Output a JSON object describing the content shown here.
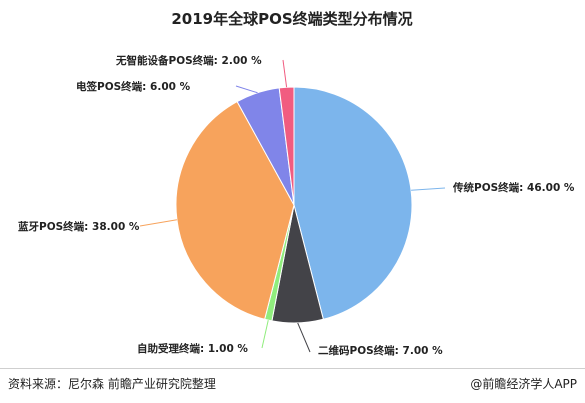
{
  "chart_data": {
    "type": "pie",
    "title": "2019年全球POS终端类型分布情况",
    "slices": [
      {
        "name": "传统POS终端",
        "value": 46.0,
        "label": "传统POS终端: 46.00 %",
        "color": "#7cb5ec"
      },
      {
        "name": "二维码POS终端",
        "value": 7.0,
        "label": "二维码POS终端: 7.00 %",
        "color": "#434348"
      },
      {
        "name": "自助受理终端",
        "value": 1.0,
        "label": "自助受理终端: 1.00 %",
        "color": "#90ed7d"
      },
      {
        "name": "蓝牙POS终端",
        "value": 38.0,
        "label": "蓝牙POS终端: 38.00 %",
        "color": "#f7a35c"
      },
      {
        "name": "电签POS终端",
        "value": 6.0,
        "label": "电签POS终端: 6.00 %",
        "color": "#8085e9"
      },
      {
        "name": "无智能设备POS终端",
        "value": 2.0,
        "label": "无智能设备POS终端: 2.00 %",
        "color": "#f15c80"
      }
    ]
  },
  "footer": {
    "source": "资料来源：尼尔森 前瞻产业研究院整理",
    "brand": "@前瞻经济学人APP"
  }
}
